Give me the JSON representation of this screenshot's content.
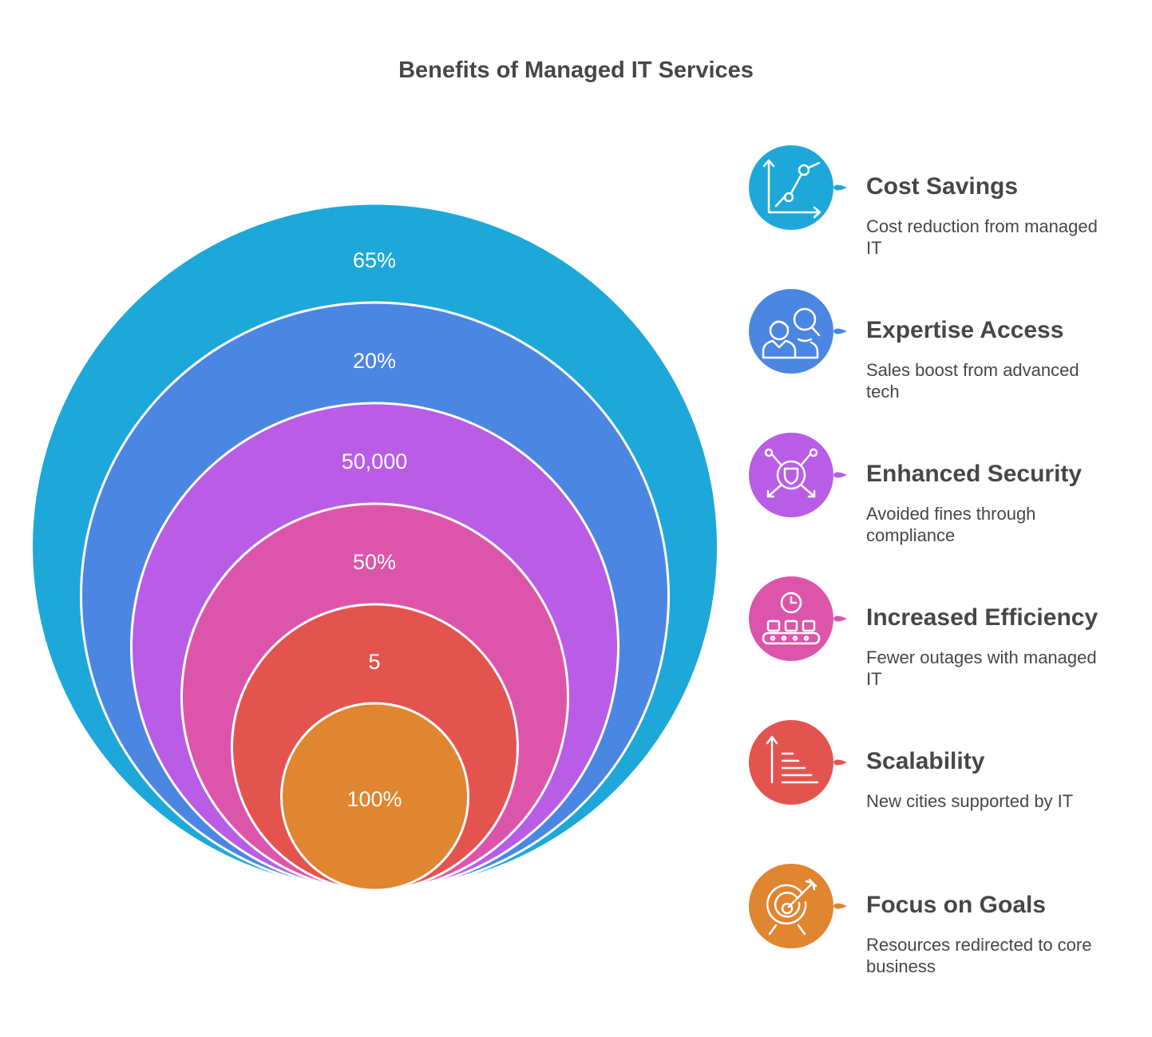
{
  "title": "Benefits of Managed IT Services",
  "rings": [
    {
      "label": "65%",
      "color": "#1EA8D9"
    },
    {
      "label": "20%",
      "color": "#4B86E2"
    },
    {
      "label": "50,000",
      "color": "#B95DE6"
    },
    {
      "label": "50%",
      "color": "#DD55AB"
    },
    {
      "label": "5",
      "color": "#E4544F"
    },
    {
      "label": "100%",
      "color": "#E08530"
    }
  ],
  "items": [
    {
      "title": "Cost Savings",
      "description": "Cost reduction from managed IT",
      "icon": "chart-growth-icon",
      "color": "#1EA8D9"
    },
    {
      "title": "Expertise Access",
      "description": "Sales boost from advanced tech",
      "icon": "experts-icon",
      "color": "#4B86E2"
    },
    {
      "title": "Enhanced Security",
      "description": "Avoided fines through compliance",
      "icon": "shield-network-icon",
      "color": "#B95DE6"
    },
    {
      "title": "Increased Efficiency",
      "description": "Fewer outages with managed IT",
      "icon": "conveyor-clock-icon",
      "color": "#DD55AB"
    },
    {
      "title": "Scalability",
      "description": "New cities supported by IT",
      "icon": "scale-up-icon",
      "color": "#E4544F"
    },
    {
      "title": "Focus on Goals",
      "description": "Resources redirected to core business",
      "icon": "target-icon",
      "color": "#E08530"
    }
  ]
}
